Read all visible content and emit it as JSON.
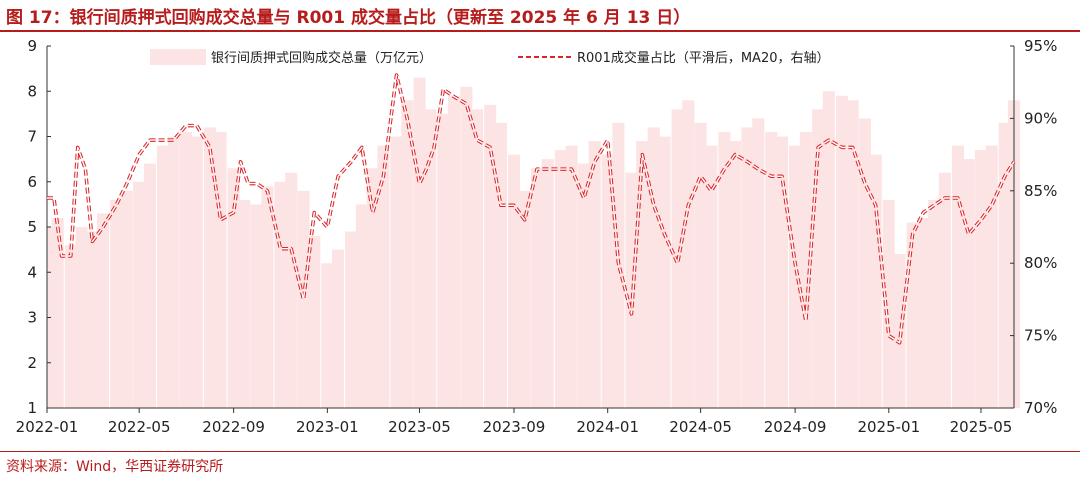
{
  "figure": {
    "title": "图 17：银行间质押式回购成交总量与 R001 成交量占比（更新至 2025 年 6 月 13 日）",
    "source": "资料来源：Wind，华西证券研究所"
  },
  "colors": {
    "bars": "#fde4e4",
    "line": "#d9262b",
    "title": "#b71c1c",
    "axis": "#333333"
  },
  "chart_data": {
    "type": "bar+line",
    "x_tick_labels": [
      "2022-01",
      "2022-05",
      "2022-09",
      "2023-01",
      "2023-05",
      "2023-09",
      "2024-01",
      "2024-05",
      "2024-09",
      "2025-01",
      "2025-05"
    ],
    "x_range": [
      "2022-01",
      "2025-06-13"
    ],
    "left_axis": {
      "range": [
        1,
        9
      ],
      "ticks": [
        "1",
        "2",
        "3",
        "4",
        "5",
        "6",
        "7",
        "8",
        "9"
      ]
    },
    "right_axis": {
      "range": [
        70,
        95
      ],
      "unit": "%",
      "ticks": [
        "70%",
        "75%",
        "80%",
        "85%",
        "90%",
        "95%"
      ]
    },
    "grid": false,
    "legend_position": "top",
    "series": [
      {
        "name": "银行间质押式回购成交总量（万亿元）",
        "type": "bar",
        "axis": "left",
        "x": [
          "2022-01-01",
          "2022-01-15",
          "2022-02-01",
          "2022-02-15",
          "2022-03-01",
          "2022-03-15",
          "2022-04-01",
          "2022-04-15",
          "2022-05-01",
          "2022-05-15",
          "2022-06-01",
          "2022-06-15",
          "2022-07-01",
          "2022-07-15",
          "2022-08-01",
          "2022-08-15",
          "2022-09-01",
          "2022-09-15",
          "2022-10-01",
          "2022-10-15",
          "2022-11-01",
          "2022-11-15",
          "2022-12-01",
          "2022-12-15",
          "2023-01-01",
          "2023-01-15",
          "2023-02-01",
          "2023-02-15",
          "2023-03-01",
          "2023-03-15",
          "2023-04-01",
          "2023-04-15",
          "2023-05-01",
          "2023-05-15",
          "2023-06-01",
          "2023-06-15",
          "2023-07-01",
          "2023-07-15",
          "2023-08-01",
          "2023-08-15",
          "2023-09-01",
          "2023-09-15",
          "2023-10-01",
          "2023-10-15",
          "2023-11-01",
          "2023-11-15",
          "2023-12-01",
          "2023-12-15",
          "2024-01-01",
          "2024-01-15",
          "2024-02-01",
          "2024-02-15",
          "2024-03-01",
          "2024-03-15",
          "2024-04-01",
          "2024-04-15",
          "2024-05-01",
          "2024-05-15",
          "2024-06-01",
          "2024-06-15",
          "2024-07-01",
          "2024-07-15",
          "2024-08-01",
          "2024-08-15",
          "2024-09-01",
          "2024-09-15",
          "2024-10-01",
          "2024-10-15",
          "2024-11-01",
          "2024-11-15",
          "2024-12-01",
          "2024-12-15",
          "2025-01-01",
          "2025-01-15",
          "2025-02-01",
          "2025-02-15",
          "2025-03-01",
          "2025-03-15",
          "2025-04-01",
          "2025-04-15",
          "2025-05-01",
          "2025-05-15",
          "2025-06-01",
          "2025-06-13"
        ],
        "values": [
          5.0,
          5.2,
          4.6,
          5.0,
          4.9,
          5.3,
          5.6,
          5.8,
          6.0,
          6.4,
          6.8,
          7.0,
          7.1,
          7.0,
          7.2,
          7.1,
          6.3,
          5.6,
          5.5,
          5.9,
          6.0,
          6.2,
          5.8,
          4.8,
          4.2,
          4.5,
          4.9,
          5.5,
          6.3,
          6.8,
          7.0,
          7.8,
          8.3,
          7.6,
          7.5,
          7.9,
          8.1,
          7.6,
          7.7,
          7.3,
          6.6,
          5.8,
          6.3,
          6.5,
          6.7,
          6.8,
          6.4,
          6.9,
          6.6,
          7.3,
          6.2,
          6.9,
          7.2,
          7.0,
          7.6,
          7.8,
          7.3,
          6.8,
          7.1,
          6.9,
          7.2,
          7.4,
          7.1,
          7.0,
          6.8,
          7.1,
          7.6,
          8.0,
          7.9,
          7.8,
          7.4,
          6.6,
          5.6,
          4.4,
          5.1,
          5.2,
          5.6,
          6.2,
          6.8,
          6.5,
          6.7,
          6.8,
          7.3,
          7.8
        ]
      },
      {
        "name": "R001成交量占比（平滑后，MA20，右轴）",
        "type": "line",
        "axis": "right",
        "x": [
          "2022-01-01",
          "2022-01-10",
          "2022-01-20",
          "2022-02-01",
          "2022-02-10",
          "2022-02-20",
          "2022-03-01",
          "2022-03-15",
          "2022-04-01",
          "2022-04-15",
          "2022-05-01",
          "2022-05-15",
          "2022-06-01",
          "2022-06-15",
          "2022-07-01",
          "2022-07-15",
          "2022-08-01",
          "2022-08-15",
          "2022-09-01",
          "2022-09-10",
          "2022-09-20",
          "2022-10-01",
          "2022-10-15",
          "2022-11-01",
          "2022-11-15",
          "2022-12-01",
          "2022-12-15",
          "2023-01-01",
          "2023-01-15",
          "2023-02-01",
          "2023-02-15",
          "2023-03-01",
          "2023-03-15",
          "2023-04-01",
          "2023-04-15",
          "2023-05-01",
          "2023-05-10",
          "2023-05-20",
          "2023-06-01",
          "2023-06-15",
          "2023-07-01",
          "2023-07-15",
          "2023-08-01",
          "2023-08-15",
          "2023-09-01",
          "2023-09-15",
          "2023-10-01",
          "2023-10-15",
          "2023-11-01",
          "2023-11-15",
          "2023-12-01",
          "2023-12-15",
          "2024-01-01",
          "2024-01-15",
          "2024-02-01",
          "2024-02-15",
          "2024-03-01",
          "2024-03-15",
          "2024-04-01",
          "2024-04-15",
          "2024-05-01",
          "2024-05-15",
          "2024-06-01",
          "2024-06-15",
          "2024-07-01",
          "2024-07-15",
          "2024-08-01",
          "2024-08-15",
          "2024-09-01",
          "2024-09-15",
          "2024-10-01",
          "2024-10-15",
          "2024-11-01",
          "2024-11-15",
          "2024-12-01",
          "2024-12-15",
          "2025-01-01",
          "2025-01-15",
          "2025-02-01",
          "2025-02-15",
          "2025-03-01",
          "2025-03-15",
          "2025-04-01",
          "2025-04-15",
          "2025-05-01",
          "2025-05-15",
          "2025-06-01",
          "2025-06-13"
        ],
        "values": [
          84.5,
          84.5,
          80.5,
          80.5,
          88.0,
          86.5,
          81.5,
          82.5,
          84.0,
          85.5,
          87.5,
          88.5,
          88.5,
          88.5,
          89.5,
          89.5,
          88.0,
          83.0,
          83.5,
          87.0,
          85.5,
          85.5,
          85.0,
          81.0,
          81.0,
          77.5,
          83.5,
          82.5,
          86.0,
          87.0,
          88.0,
          83.5,
          86.0,
          93.0,
          90.0,
          85.5,
          86.5,
          88.0,
          92.0,
          91.5,
          91.0,
          88.5,
          88.0,
          84.0,
          84.0,
          83.0,
          86.5,
          86.5,
          86.5,
          86.5,
          84.5,
          87.0,
          88.5,
          80.0,
          76.5,
          87.5,
          84.0,
          82.0,
          80.0,
          84.0,
          86.0,
          85.0,
          86.5,
          87.5,
          87.0,
          86.5,
          86.0,
          86.0,
          80.0,
          76.0,
          88.0,
          88.5,
          88.0,
          88.0,
          85.5,
          84.0,
          75.0,
          74.5,
          82.0,
          83.5,
          84.0,
          84.5,
          84.5,
          82.0,
          83.0,
          84.0,
          86.0,
          87.0
        ]
      }
    ]
  }
}
